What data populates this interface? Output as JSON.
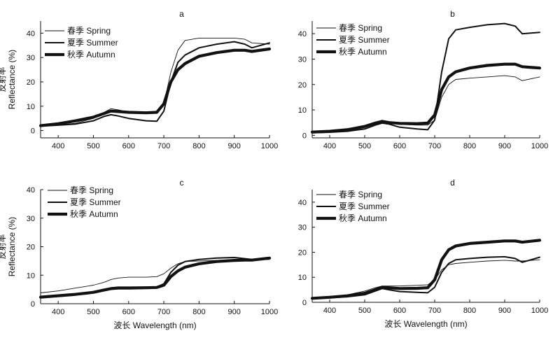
{
  "figure": {
    "ylabel_cn": "反射率",
    "ylabel_en": "Reflectance (%)",
    "xlabel": "波长 Wavelength (nm)"
  },
  "chart_data": [
    {
      "type": "line",
      "panel": "a",
      "title": "a",
      "xlabel": "",
      "ylabel": "反射率 Reflectance (%)",
      "xlim": [
        350,
        1000
      ],
      "ylim": [
        -3,
        45
      ],
      "xticks": [
        400,
        500,
        600,
        700,
        800,
        900,
        1000
      ],
      "yticks": [
        0,
        10,
        20,
        30,
        40
      ],
      "x": [
        350,
        400,
        450,
        500,
        530,
        550,
        570,
        600,
        650,
        680,
        700,
        720,
        740,
        760,
        800,
        850,
        900,
        930,
        950,
        1000
      ],
      "series": [
        {
          "name": "春季 Spring",
          "style": "thin",
          "values": [
            1.8,
            2.3,
            3.0,
            5.0,
            7.5,
            9.0,
            8.5,
            7.5,
            7.3,
            7.6,
            11,
            24,
            33,
            37,
            38,
            38,
            38,
            37.5,
            36,
            35.5
          ]
        },
        {
          "name": "夏季 Summer",
          "style": "medium",
          "values": [
            1.8,
            2.2,
            2.7,
            4.0,
            5.8,
            6.5,
            6.0,
            5.0,
            4.0,
            3.8,
            8,
            20,
            28,
            31,
            34,
            35.5,
            36.5,
            35.5,
            34,
            36
          ]
        },
        {
          "name": "秋季 Autumn",
          "style": "thick",
          "values": [
            2.0,
            2.8,
            4.0,
            5.5,
            7.0,
            8.0,
            7.8,
            7.5,
            7.3,
            7.5,
            11,
            20,
            25,
            27.5,
            30.5,
            32,
            33,
            33,
            32.5,
            33.5
          ]
        }
      ]
    },
    {
      "type": "line",
      "panel": "b",
      "title": "b",
      "xlabel": "",
      "ylabel": "",
      "xlim": [
        350,
        1000
      ],
      "ylim": [
        -1,
        45
      ],
      "xticks": [
        400,
        500,
        600,
        700,
        800,
        900,
        1000
      ],
      "yticks": [
        0,
        10,
        20,
        30,
        40
      ],
      "x": [
        350,
        400,
        450,
        500,
        530,
        550,
        570,
        600,
        650,
        680,
        700,
        720,
        740,
        760,
        800,
        850,
        900,
        930,
        950,
        1000
      ],
      "series": [
        {
          "name": "春季 Spring",
          "style": "thin",
          "values": [
            1.5,
            1.8,
            2.3,
            3.5,
            4.5,
            5.0,
            4.7,
            4.3,
            4.0,
            4.0,
            6,
            15,
            20,
            22,
            22.5,
            23,
            23.5,
            23,
            21.5,
            23
          ]
        },
        {
          "name": "夏季 Summer",
          "style": "medium",
          "values": [
            1.0,
            1.2,
            1.6,
            2.5,
            4.0,
            4.8,
            4.4,
            3.2,
            2.5,
            2.2,
            6,
            25,
            38,
            41.5,
            42.5,
            43.5,
            44,
            43,
            40,
            40.5
          ]
        },
        {
          "name": "秋季 Autumn",
          "style": "thick",
          "values": [
            1.3,
            1.6,
            2.2,
            3.5,
            4.8,
            5.5,
            5.0,
            4.7,
            4.6,
            4.8,
            8,
            18,
            23,
            25,
            26.5,
            27.5,
            28,
            28,
            27,
            26.5
          ]
        }
      ]
    },
    {
      "type": "line",
      "panel": "c",
      "title": "c",
      "xlabel": "波长 Wavelength (nm)",
      "ylabel": "反射率 Reflectance (%)",
      "xlim": [
        350,
        1000
      ],
      "ylim": [
        0,
        40
      ],
      "xticks": [
        400,
        500,
        600,
        700,
        800,
        900,
        1000
      ],
      "yticks": [
        0,
        10,
        20,
        30,
        40
      ],
      "x": [
        350,
        400,
        450,
        500,
        530,
        550,
        570,
        600,
        650,
        680,
        700,
        720,
        740,
        760,
        800,
        850,
        900,
        930,
        950,
        1000
      ],
      "series": [
        {
          "name": "春季 Spring",
          "style": "thin",
          "values": [
            3.8,
            4.5,
            5.5,
            6.5,
            7.5,
            8.5,
            9.0,
            9.3,
            9.3,
            9.5,
            10.5,
            12.5,
            14,
            14.8,
            15,
            15.2,
            15.5,
            15.5,
            15.3,
            15.5
          ]
        },
        {
          "name": "夏季 Summer",
          "style": "medium",
          "values": [
            2.5,
            3.0,
            3.5,
            4.0,
            4.8,
            5.5,
            5.8,
            5.8,
            5.8,
            5.9,
            7,
            11,
            13.5,
            14.8,
            15.5,
            16,
            16.2,
            15.8,
            15.5,
            15.8
          ]
        },
        {
          "name": "秋季 Autumn",
          "style": "thick",
          "values": [
            2.3,
            2.8,
            3.3,
            4.0,
            4.8,
            5.3,
            5.5,
            5.5,
            5.6,
            5.7,
            6.5,
            9.5,
            11.5,
            12.8,
            14,
            14.8,
            15.2,
            15.3,
            15.3,
            16
          ]
        }
      ]
    },
    {
      "type": "line",
      "panel": "d",
      "title": "d",
      "xlabel": "波长 Wavelength (nm)",
      "ylabel": "",
      "xlim": [
        350,
        1000
      ],
      "ylim": [
        0,
        45
      ],
      "xticks": [
        400,
        500,
        600,
        700,
        800,
        900,
        1000
      ],
      "yticks": [
        0,
        10,
        20,
        30,
        40
      ],
      "x": [
        350,
        400,
        450,
        500,
        530,
        550,
        570,
        600,
        650,
        680,
        700,
        720,
        740,
        760,
        800,
        850,
        900,
        930,
        950,
        1000
      ],
      "series": [
        {
          "name": "春季 Spring",
          "style": "thin",
          "values": [
            1.8,
            2.3,
            3.0,
            4.5,
            5.8,
            6.5,
            6.5,
            6.5,
            6.8,
            7.0,
            9,
            13,
            15,
            15.5,
            16,
            16.5,
            16.8,
            16.5,
            16.5,
            17
          ]
        },
        {
          "name": "夏季 Summer",
          "style": "medium",
          "values": [
            1.5,
            1.8,
            2.2,
            3.0,
            4.5,
            5.5,
            5.0,
            4.3,
            4.0,
            3.8,
            6,
            12,
            15.5,
            17,
            17.5,
            18,
            18.2,
            17.5,
            16,
            18
          ]
        },
        {
          "name": "秋季 Autumn",
          "style": "thick",
          "values": [
            1.6,
            2.0,
            2.6,
            3.6,
            5.0,
            6.0,
            5.8,
            5.5,
            5.6,
            5.8,
            9,
            17,
            21,
            22.5,
            23.5,
            24,
            24.5,
            24.5,
            24,
            24.8
          ]
        }
      ]
    }
  ]
}
